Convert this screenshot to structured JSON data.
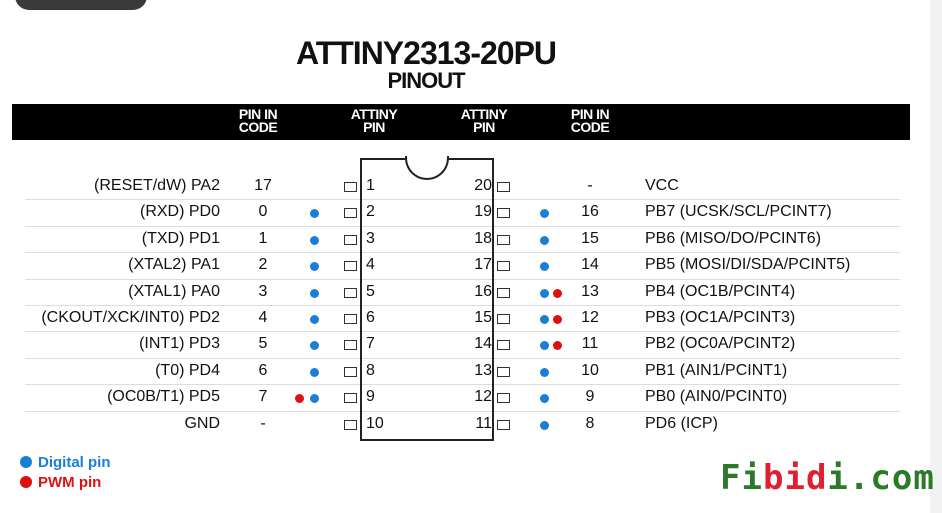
{
  "title": "ATTINY2313-20PU",
  "subtitle": "PINOUT",
  "header": {
    "left_code": "PIN IN CODE",
    "left_pin": "ATTINY PIN",
    "right_pin": "ATTINY PIN",
    "right_code": "PIN IN CODE"
  },
  "colors": {
    "digital": "#1a7fd4",
    "pwm": "#e01010"
  },
  "rows": [
    {
      "lname": "(RESET/dW) PA2",
      "lcode": "17",
      "lpin": "1",
      "ldig": false,
      "lpwm": false,
      "rpin": "20",
      "rdig": false,
      "rpwm": false,
      "rcode": "-",
      "rname": "VCC"
    },
    {
      "lname": "(RXD) PD0",
      "lcode": "0",
      "lpin": "2",
      "ldig": true,
      "lpwm": false,
      "rpin": "19",
      "rdig": true,
      "rpwm": false,
      "rcode": "16",
      "rname": "PB7 (UCSK/SCL/PCINT7)"
    },
    {
      "lname": "(TXD) PD1",
      "lcode": "1",
      "lpin": "3",
      "ldig": true,
      "lpwm": false,
      "rpin": "18",
      "rdig": true,
      "rpwm": false,
      "rcode": "15",
      "rname": "PB6 (MISO/DO/PCINT6)"
    },
    {
      "lname": "(XTAL2) PA1",
      "lcode": "2",
      "lpin": "4",
      "ldig": true,
      "lpwm": false,
      "rpin": "17",
      "rdig": true,
      "rpwm": false,
      "rcode": "14",
      "rname": "PB5 (MOSI/DI/SDA/PCINT5)"
    },
    {
      "lname": "(XTAL1) PA0",
      "lcode": "3",
      "lpin": "5",
      "ldig": true,
      "lpwm": false,
      "rpin": "16",
      "rdig": true,
      "rpwm": true,
      "rcode": "13",
      "rname": "PB4 (OC1B/PCINT4)"
    },
    {
      "lname": "(CKOUT/XCK/INT0) PD2",
      "lcode": "4",
      "lpin": "6",
      "ldig": true,
      "lpwm": false,
      "rpin": "15",
      "rdig": true,
      "rpwm": true,
      "rcode": "12",
      "rname": "PB3 (OC1A/PCINT3)"
    },
    {
      "lname": "(INT1) PD3",
      "lcode": "5",
      "lpin": "7",
      "ldig": true,
      "lpwm": false,
      "rpin": "14",
      "rdig": true,
      "rpwm": true,
      "rcode": "11",
      "rname": "PB2 (OC0A/PCINT2)"
    },
    {
      "lname": "(T0) PD4",
      "lcode": "6",
      "lpin": "8",
      "ldig": true,
      "lpwm": false,
      "rpin": "13",
      "rdig": true,
      "rpwm": false,
      "rcode": "10",
      "rname": "PB1 (AIN1/PCINT1)"
    },
    {
      "lname": "(OC0B/T1) PD5",
      "lcode": "7",
      "lpin": "9",
      "ldig": true,
      "lpwm": true,
      "rpin": "12",
      "rdig": true,
      "rpwm": false,
      "rcode": "9",
      "rname": "PB0 (AIN0/PCINT0)"
    },
    {
      "lname": "GND",
      "lcode": "-",
      "lpin": "10",
      "ldig": false,
      "lpwm": false,
      "rpin": "11",
      "rdig": true,
      "rpwm": false,
      "rcode": "8",
      "rname": "PD6 (ICP)"
    }
  ],
  "legend": {
    "digital": "Digital pin",
    "pwm": "PWM pin"
  },
  "logo": "Fibidi.com"
}
